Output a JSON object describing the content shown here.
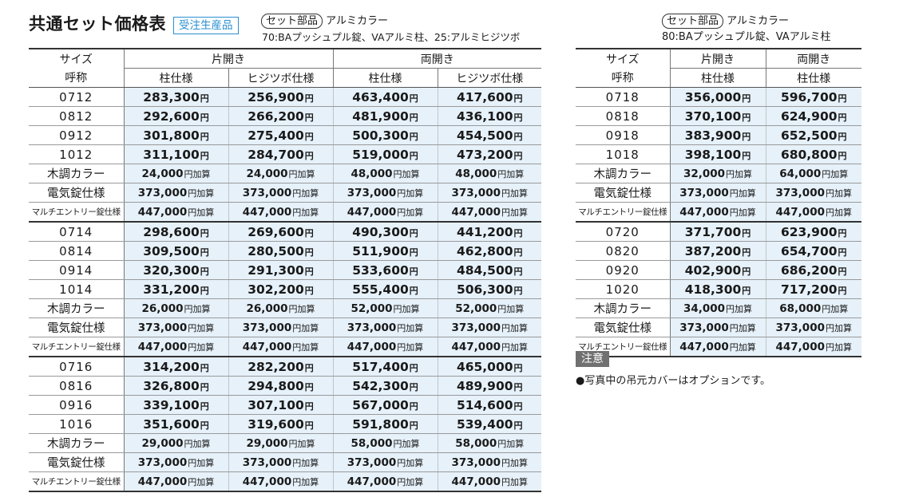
{
  "title": "共通セット価格表",
  "badge": "受注生産品",
  "left_spec": {
    "pill": "セット部品",
    "color": "アルミカラー",
    "line2": "70:BAプッシュプル錠、VAアルミ柱、25:アルミヒジツボ"
  },
  "right_spec": {
    "pill": "セット部品",
    "color": "アルミカラー",
    "line2": "80:BAプッシュプル錠、VAアルミ柱"
  },
  "headers": {
    "size": "サイズ",
    "call": "呼称",
    "kata": "片開き",
    "ryo": "両開き",
    "hashira": "柱仕様",
    "hiji": "ヒジツボ仕様"
  },
  "yen": "円",
  "yen_add": "円加算",
  "left_rows": [
    {
      "name": "0712",
      "v": [
        "283,300",
        "256,900",
        "463,400",
        "417,600"
      ]
    },
    {
      "name": "0812",
      "v": [
        "292,600",
        "266,200",
        "481,900",
        "436,100"
      ]
    },
    {
      "name": "0912",
      "v": [
        "301,800",
        "275,400",
        "500,300",
        "454,500"
      ]
    },
    {
      "name": "1012",
      "v": [
        "311,100",
        "284,700",
        "519,000",
        "473,200"
      ]
    },
    {
      "name": "木調カラー",
      "v": [
        "24,000",
        "24,000",
        "48,000",
        "48,000"
      ],
      "add": true
    },
    {
      "name": "電気錠仕様",
      "v": [
        "373,000",
        "373,000",
        "373,000",
        "373,000"
      ],
      "add": true
    },
    {
      "name": "マルチエントリー錠仕様",
      "v": [
        "447,000",
        "447,000",
        "447,000",
        "447,000"
      ],
      "add": true
    },
    {
      "name": "0714",
      "v": [
        "298,600",
        "269,600",
        "490,300",
        "441,200"
      ]
    },
    {
      "name": "0814",
      "v": [
        "309,500",
        "280,500",
        "511,900",
        "462,800"
      ]
    },
    {
      "name": "0914",
      "v": [
        "320,300",
        "291,300",
        "533,600",
        "484,500"
      ]
    },
    {
      "name": "1014",
      "v": [
        "331,200",
        "302,200",
        "555,400",
        "506,300"
      ]
    },
    {
      "name": "木調カラー",
      "v": [
        "26,000",
        "26,000",
        "52,000",
        "52,000"
      ],
      "add": true
    },
    {
      "name": "電気錠仕様",
      "v": [
        "373,000",
        "373,000",
        "373,000",
        "373,000"
      ],
      "add": true
    },
    {
      "name": "マルチエントリー錠仕様",
      "v": [
        "447,000",
        "447,000",
        "447,000",
        "447,000"
      ],
      "add": true
    },
    {
      "name": "0716",
      "v": [
        "314,200",
        "282,200",
        "517,400",
        "465,000"
      ]
    },
    {
      "name": "0816",
      "v": [
        "326,800",
        "294,800",
        "542,300",
        "489,900"
      ]
    },
    {
      "name": "0916",
      "v": [
        "339,100",
        "307,100",
        "567,000",
        "514,600"
      ]
    },
    {
      "name": "1016",
      "v": [
        "351,600",
        "319,600",
        "591,800",
        "539,400"
      ]
    },
    {
      "name": "木調カラー",
      "v": [
        "29,000",
        "29,000",
        "58,000",
        "58,000"
      ],
      "add": true
    },
    {
      "name": "電気錠仕様",
      "v": [
        "373,000",
        "373,000",
        "373,000",
        "373,000"
      ],
      "add": true
    },
    {
      "name": "マルチエントリー錠仕様",
      "v": [
        "447,000",
        "447,000",
        "447,000",
        "447,000"
      ],
      "add": true
    }
  ],
  "right_rows": [
    {
      "name": "0718",
      "v": [
        "356,000",
        "596,700"
      ]
    },
    {
      "name": "0818",
      "v": [
        "370,100",
        "624,900"
      ]
    },
    {
      "name": "0918",
      "v": [
        "383,900",
        "652,500"
      ]
    },
    {
      "name": "1018",
      "v": [
        "398,100",
        "680,800"
      ]
    },
    {
      "name": "木調カラー",
      "v": [
        "32,000",
        "64,000"
      ],
      "add": true
    },
    {
      "name": "電気錠仕様",
      "v": [
        "373,000",
        "373,000"
      ],
      "add": true
    },
    {
      "name": "マルチエントリー錠仕様",
      "v": [
        "447,000",
        "447,000"
      ],
      "add": true
    },
    {
      "name": "0720",
      "v": [
        "371,700",
        "623,900"
      ]
    },
    {
      "name": "0820",
      "v": [
        "387,200",
        "654,700"
      ]
    },
    {
      "name": "0920",
      "v": [
        "402,900",
        "686,200"
      ]
    },
    {
      "name": "1020",
      "v": [
        "418,300",
        "717,200"
      ]
    },
    {
      "name": "木調カラー",
      "v": [
        "34,000",
        "68,000"
      ],
      "add": true
    },
    {
      "name": "電気錠仕様",
      "v": [
        "373,000",
        "373,000"
      ],
      "add": true
    },
    {
      "name": "マルチエントリー錠仕様",
      "v": [
        "447,000",
        "447,000"
      ],
      "add": true
    }
  ],
  "note": {
    "label": "注意",
    "text": "●写真中の吊元カバーはオプションです。"
  },
  "colors": {
    "accent": "#2a8fd0",
    "cell_bg": "#e6f1fa",
    "note_bg": "#707070"
  }
}
